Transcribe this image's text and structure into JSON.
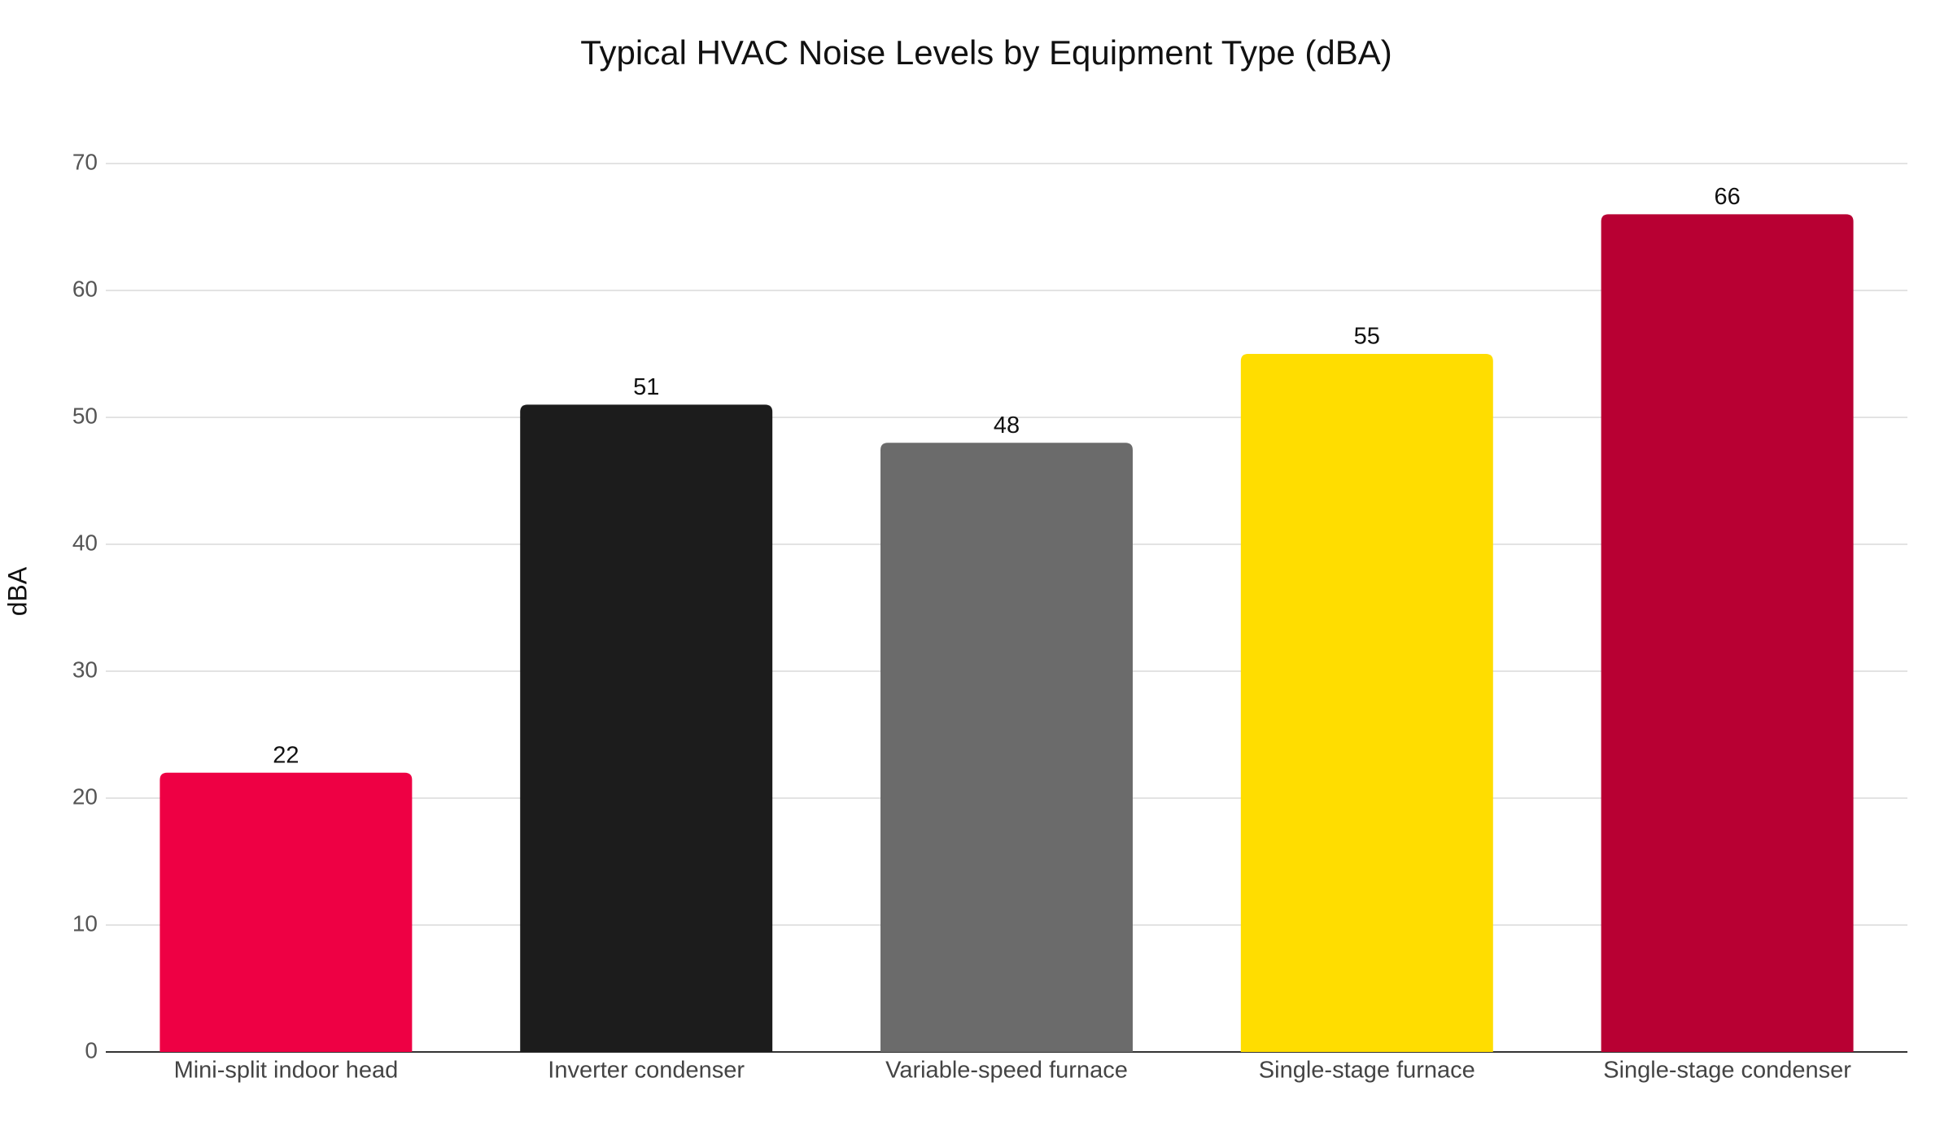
{
  "chart_data": {
    "type": "bar",
    "title": "Typical HVAC Noise Levels by Equipment Type (dBA)",
    "y_label": "dBA",
    "categories": [
      "Mini-split indoor head",
      "Inverter condenser",
      "Variable-speed furnace",
      "Single-stage furnace",
      "Single-stage condenser"
    ],
    "values": [
      22,
      51,
      48,
      55,
      66
    ],
    "colors": [
      "#ee0044",
      "#1c1c1c",
      "#6b6b6b",
      "#ffdd00",
      "#b80033"
    ],
    "ylim": [
      0,
      70
    ],
    "yticks": [
      0,
      10,
      20,
      30,
      40,
      50,
      60,
      70
    ],
    "grid": true
  }
}
